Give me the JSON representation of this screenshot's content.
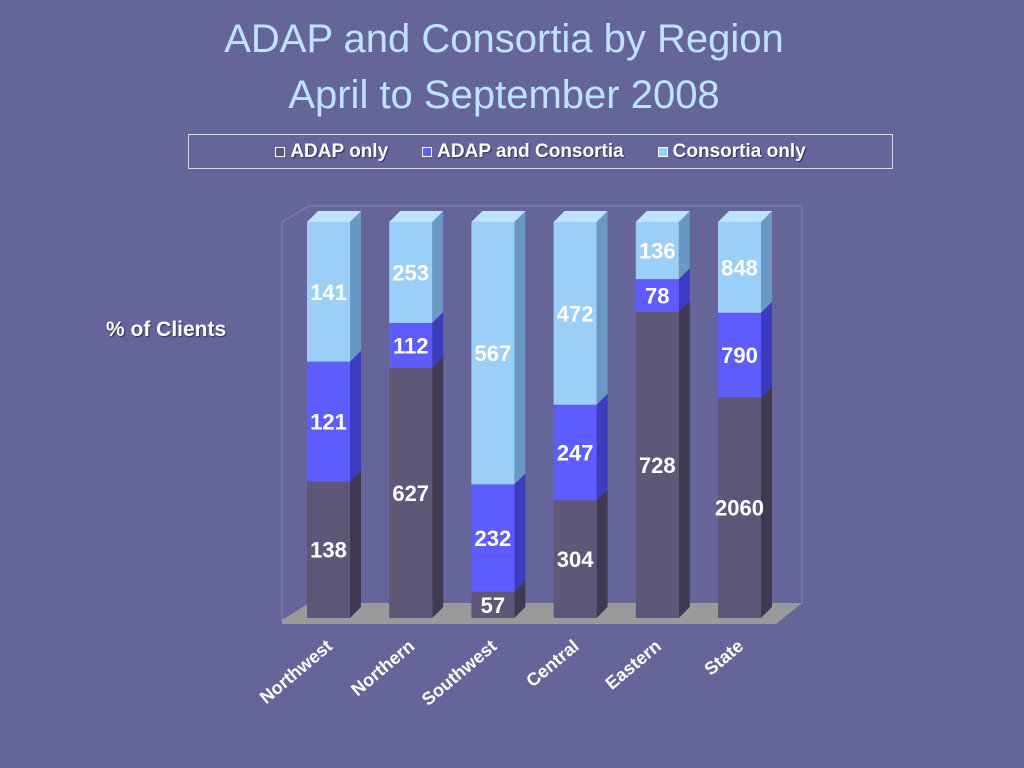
{
  "title_line1": "ADAP and Consortia by Region",
  "title_line2": "April to September 2008",
  "colors": {
    "background": "#65659a",
    "title": "#bfe3ff",
    "adap_only": "#5f5778",
    "adap_and_consortia": "#5c5cff",
    "consortia_only": "#9ccff8"
  },
  "chart_data": {
    "type": "bar",
    "stacked": true,
    "normalized_to_100_percent": true,
    "title": "ADAP and Consortia by Region April to September 2008",
    "xlabel": "",
    "ylabel": "% of Clients",
    "legend_position": "top",
    "grid": false,
    "categories": [
      "Northwest",
      "Northern",
      "Southwest",
      "Central",
      "Eastern",
      "State"
    ],
    "series": [
      {
        "name": "ADAP only",
        "values": [
          138,
          627,
          57,
          304,
          728,
          2060
        ]
      },
      {
        "name": "ADAP and Consortia",
        "values": [
          121,
          112,
          232,
          247,
          78,
          790
        ]
      },
      {
        "name": "Consortia only",
        "values": [
          141,
          253,
          567,
          472,
          136,
          848
        ]
      }
    ]
  }
}
